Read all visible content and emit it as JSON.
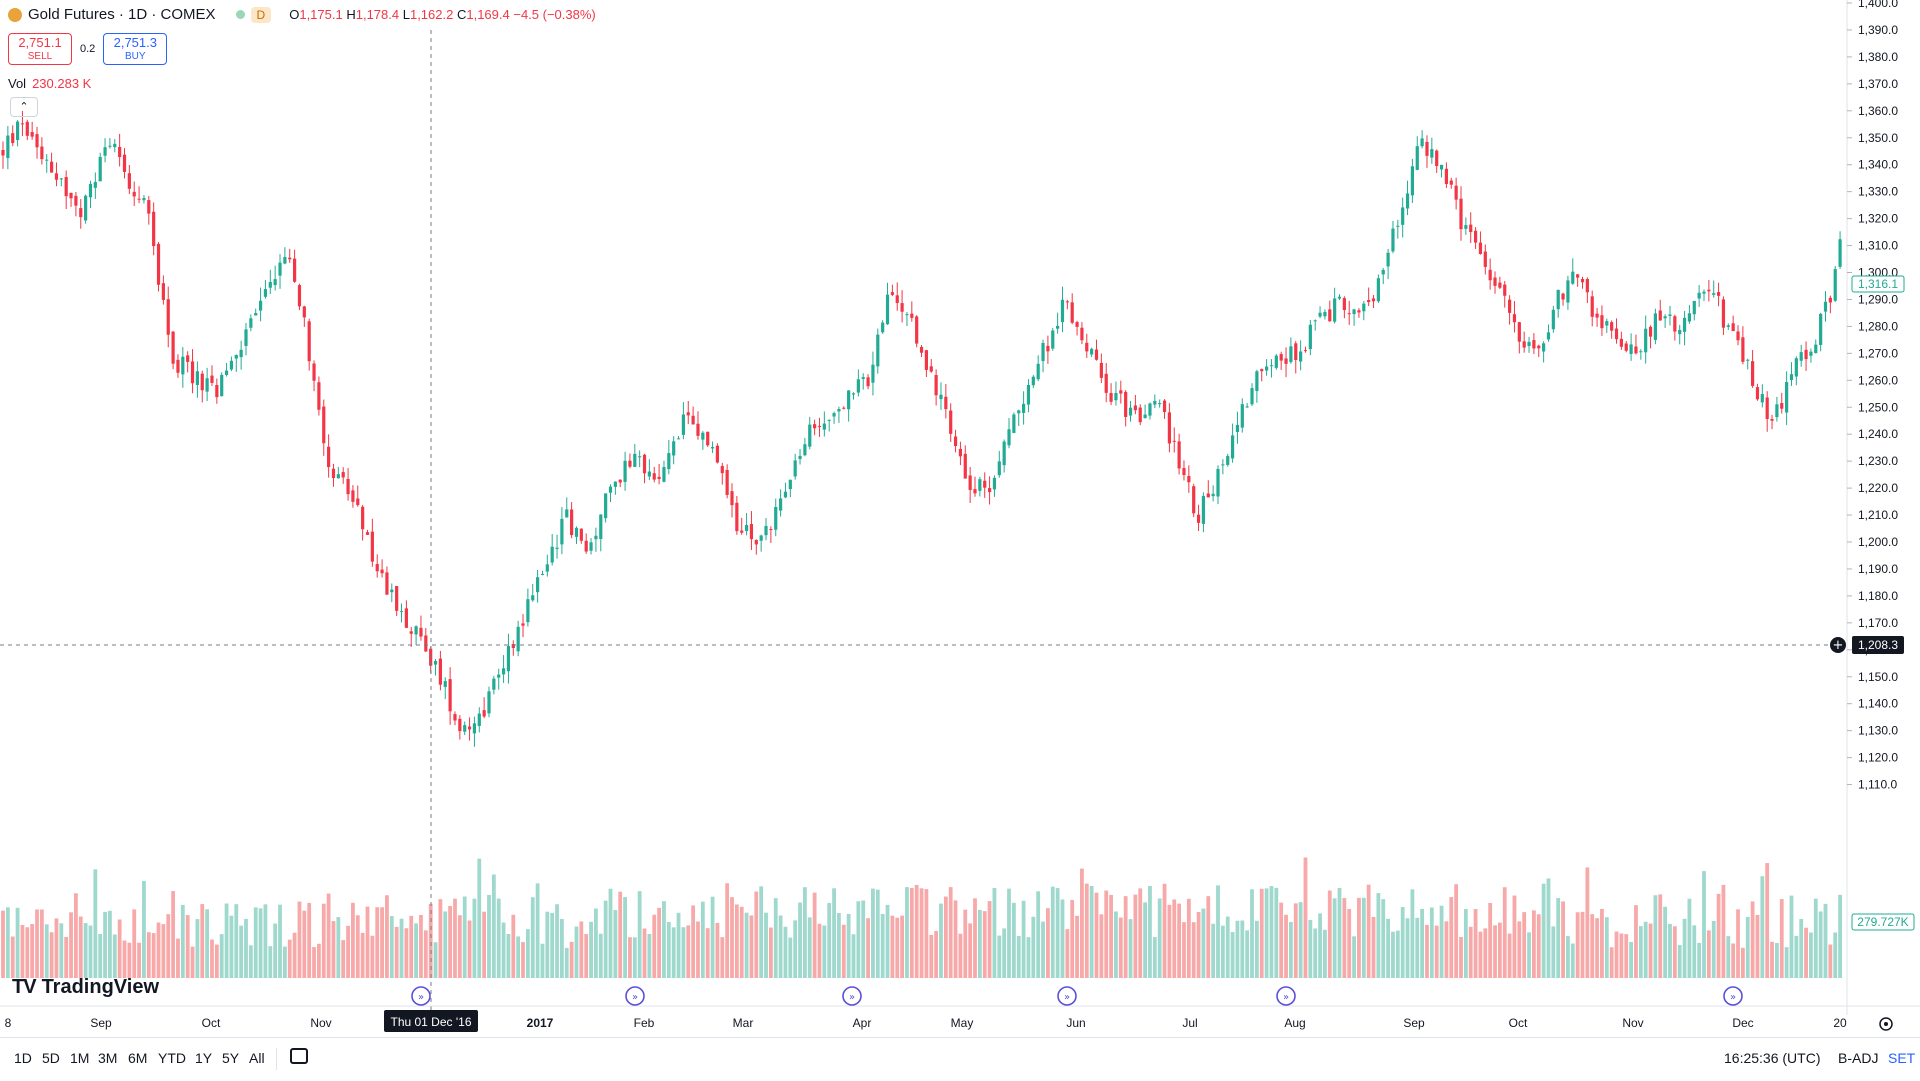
{
  "header": {
    "symbol_title": "Gold Futures · 1D · COMEX",
    "badge": "D",
    "ohlc": {
      "o_label": "O",
      "o_value": "1,175.1",
      "h_label": "H",
      "h_value": "1,178.4",
      "l_label": "L",
      "l_value": "1,162.2",
      "c_label": "C",
      "c_value": "1,169.4",
      "change": "−4.5 (−0.38%)"
    }
  },
  "trade": {
    "sell_price": "2,751.1",
    "sell_label": "SELL",
    "spread": "0.2",
    "buy_price": "2,751.3",
    "buy_label": "BUY"
  },
  "volume": {
    "label": "Vol",
    "value": "230.283 K"
  },
  "brand": "TradingView",
  "bottom": {
    "ranges": [
      "1D",
      "5D",
      "1M",
      "3M",
      "6M",
      "YTD",
      "1Y",
      "5Y",
      "All"
    ],
    "clock": "16:25:36 (UTC)",
    "adj": "B-ADJ",
    "session": "SET"
  },
  "colors": {
    "up": "#22ab94",
    "down": "#f23645",
    "vol_up": "#9fd8cd",
    "vol_down": "#f7a9a9"
  },
  "chart_data": {
    "type": "candlestick",
    "y_axis": {
      "range": [
        1100,
        1400
      ],
      "ticks": [
        "1,110.0",
        "1,120.0",
        "1,130.0",
        "1,140.0",
        "1,150.0",
        "1,160.0",
        "1,170.0",
        "1,180.0",
        "1,190.0",
        "1,200.0",
        "1,210.0",
        "1,220.0",
        "1,230.0",
        "1,240.0",
        "1,250.0",
        "1,260.0",
        "1,270.0",
        "1,280.0",
        "1,290.0",
        "1,300.0",
        "1,310.0",
        "1,320.0",
        "1,330.0",
        "1,340.0",
        "1,350.0",
        "1,360.0",
        "1,370.0",
        "1,380.0",
        "1,390.0",
        "1,400.0"
      ],
      "last_price_label": "1,316.1",
      "crosshair_price_label": "1,208.3",
      "volume_label": "279.727K"
    },
    "x_axis": {
      "labels": [
        "8",
        "Sep",
        "Oct",
        "Nov",
        "2017",
        "Feb",
        "Mar",
        "Apr",
        "May",
        "Jun",
        "Jul",
        "Aug",
        "Sep",
        "Oct",
        "Nov",
        "Dec",
        "20"
      ],
      "crosshair_label": "Thu 01 Dec '16"
    },
    "trend_points": [
      [
        0,
        1345
      ],
      [
        4,
        1356
      ],
      [
        10,
        1340
      ],
      [
        16,
        1320
      ],
      [
        22,
        1350
      ],
      [
        26,
        1335
      ],
      [
        30,
        1320
      ],
      [
        35,
        1268
      ],
      [
        44,
        1255
      ],
      [
        52,
        1285
      ],
      [
        58,
        1308
      ],
      [
        61,
        1290
      ],
      [
        64,
        1260
      ],
      [
        67,
        1230
      ],
      [
        72,
        1215
      ],
      [
        78,
        1185
      ],
      [
        83,
        1172
      ],
      [
        90,
        1150
      ],
      [
        94,
        1132
      ],
      [
        98,
        1135
      ],
      [
        104,
        1160
      ],
      [
        110,
        1185
      ],
      [
        116,
        1210
      ],
      [
        120,
        1195
      ],
      [
        124,
        1215
      ],
      [
        130,
        1235
      ],
      [
        134,
        1220
      ],
      [
        140,
        1245
      ],
      [
        146,
        1235
      ],
      [
        150,
        1210
      ],
      [
        155,
        1198
      ],
      [
        160,
        1215
      ],
      [
        166,
        1240
      ],
      [
        172,
        1250
      ],
      [
        178,
        1260
      ],
      [
        182,
        1290
      ],
      [
        186,
        1285
      ],
      [
        190,
        1265
      ],
      [
        194,
        1250
      ],
      [
        198,
        1225
      ],
      [
        202,
        1218
      ],
      [
        206,
        1235
      ],
      [
        210,
        1255
      ],
      [
        214,
        1270
      ],
      [
        218,
        1288
      ],
      [
        222,
        1278
      ],
      [
        226,
        1260
      ],
      [
        230,
        1252
      ],
      [
        234,
        1245
      ],
      [
        238,
        1252
      ],
      [
        242,
        1228
      ],
      [
        246,
        1210
      ],
      [
        250,
        1225
      ],
      [
        254,
        1245
      ],
      [
        258,
        1262
      ],
      [
        262,
        1272
      ],
      [
        266,
        1268
      ],
      [
        270,
        1280
      ],
      [
        276,
        1290
      ],
      [
        280,
        1285
      ],
      [
        284,
        1300
      ],
      [
        288,
        1328
      ],
      [
        292,
        1348
      ],
      [
        296,
        1340
      ],
      [
        300,
        1318
      ],
      [
        304,
        1305
      ],
      [
        308,
        1292
      ],
      [
        312,
        1278
      ],
      [
        316,
        1270
      ],
      [
        320,
        1290
      ],
      [
        324,
        1300
      ],
      [
        328,
        1282
      ],
      [
        332,
        1276
      ],
      [
        336,
        1272
      ],
      [
        340,
        1282
      ],
      [
        344,
        1280
      ],
      [
        348,
        1288
      ],
      [
        352,
        1292
      ],
      [
        356,
        1275
      ],
      [
        360,
        1260
      ],
      [
        364,
        1244
      ],
      [
        368,
        1262
      ],
      [
        372,
        1272
      ],
      [
        376,
        1292
      ],
      [
        378,
        1316
      ]
    ],
    "bar_count": 379,
    "volume_range_k": [
      0,
      400
    ]
  }
}
